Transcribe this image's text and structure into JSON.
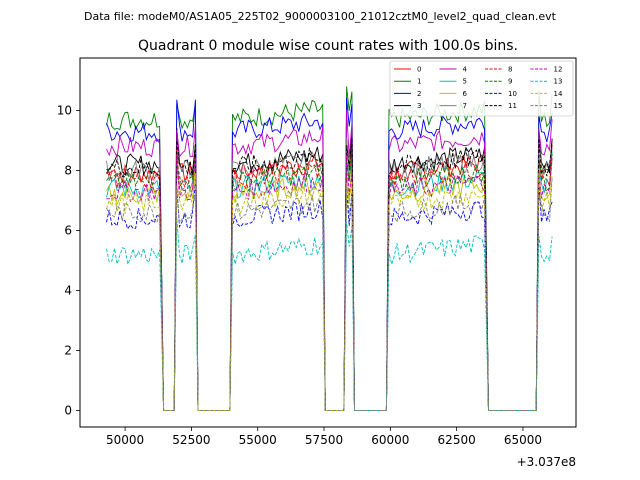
{
  "chart_data": {
    "type": "line",
    "suptitle": "Data file: modeM0/AS1A05_225T02_9000003100_21012cztM0_level2_quad_clean.evt",
    "title": "Quadrant 0 module wise count rates with 100.0s bins.",
    "xlabel": "",
    "ylabel": "",
    "x_offset_label": "+3.037e8",
    "xlim": [
      48300,
      67000
    ],
    "ylim": [
      -0.55,
      11.75
    ],
    "x_ticks": [
      50000,
      52500,
      55000,
      57500,
      60000,
      62500,
      65000
    ],
    "x_tick_labels": [
      "50000",
      "52500",
      "55000",
      "57500",
      "60000",
      "62500",
      "65000"
    ],
    "y_ticks": [
      0,
      2,
      4,
      6,
      8,
      10
    ],
    "y_tick_labels": [
      "0",
      "2",
      "4",
      "6",
      "8",
      "10"
    ],
    "bin_seconds": 100,
    "good_segments": [
      {
        "start": 49300,
        "end": 51350
      },
      {
        "start": 51950,
        "end": 52650
      },
      {
        "start": 54050,
        "end": 57450
      },
      {
        "start": 58350,
        "end": 58550
      },
      {
        "start": 59950,
        "end": 63600
      },
      {
        "start": 65600,
        "end": 66100
      }
    ],
    "gap_value": 0.0,
    "legend_location": "upper right",
    "legend_columns": 4,
    "series": [
      {
        "name": "0",
        "level": 7.9,
        "color": "#ff0000",
        "dash": "solid"
      },
      {
        "name": "1",
        "level": 9.7,
        "color": "#008000",
        "dash": "solid"
      },
      {
        "name": "2",
        "level": 9.3,
        "color": "#0000ff",
        "dash": "solid"
      },
      {
        "name": "3",
        "level": 8.2,
        "color": "#000000",
        "dash": "solid"
      },
      {
        "name": "4",
        "level": 8.8,
        "color": "#bf00bf",
        "dash": "solid"
      },
      {
        "name": "5",
        "level": 7.4,
        "color": "#00bfbf",
        "dash": "solid"
      },
      {
        "name": "6",
        "level": 7.2,
        "color": "#bfbf00",
        "dash": "solid"
      },
      {
        "name": "7",
        "level": 8.0,
        "color": "#808080",
        "dash": "solid"
      },
      {
        "name": "8",
        "level": 7.7,
        "color": "#ff0000",
        "dash": "dashed"
      },
      {
        "name": "9",
        "level": 7.6,
        "color": "#008000",
        "dash": "dashed"
      },
      {
        "name": "10",
        "level": 6.4,
        "color": "#0000ff",
        "dash": "dashed"
      },
      {
        "name": "11",
        "level": 8.1,
        "color": "#000000",
        "dash": "dashed"
      },
      {
        "name": "12",
        "level": 7.3,
        "color": "#bf00bf",
        "dash": "dashed"
      },
      {
        "name": "13",
        "level": 5.2,
        "color": "#00bfbf",
        "dash": "dashed"
      },
      {
        "name": "14",
        "level": 6.9,
        "color": "#bfbf00",
        "dash": "dashed"
      },
      {
        "name": "15",
        "level": 6.6,
        "color": "#808080",
        "dash": "dashed"
      }
    ]
  }
}
